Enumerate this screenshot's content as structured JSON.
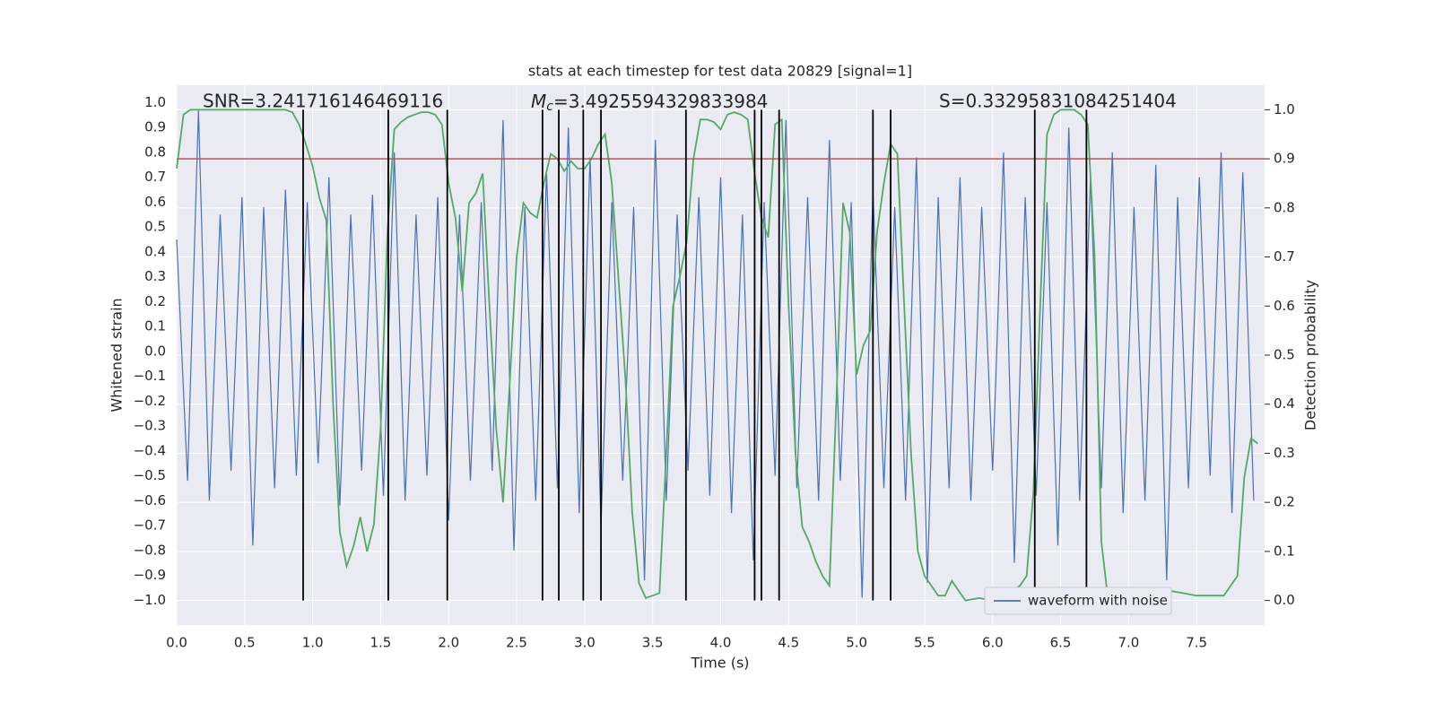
{
  "chart_data": {
    "type": "line",
    "title": "stats at each timestep for test data 20829 [signal=1]",
    "xlabel": "Time (s)",
    "ylabel": "Whitened strain",
    "y2label": "Detection probability",
    "annotations": [
      "SNR=3.241716146469116",
      "Mc=3.4925594329833984",
      "S=0.33295831084251404"
    ],
    "xlim": [
      0,
      8
    ],
    "ylim": [
      -1.1,
      1.07
    ],
    "y2lim": [
      -0.05,
      1.05
    ],
    "xticks": [
      {
        "value": 0,
        "label": "0.0"
      },
      0.5,
      {
        "value": 1,
        "label": "1.0"
      },
      1.5,
      {
        "value": 2,
        "label": "2.0"
      },
      2.5,
      {
        "value": 3,
        "label": "3.0"
      },
      3.5,
      {
        "value": 4,
        "label": "4.0"
      },
      4.5,
      {
        "value": 5,
        "label": "5.0"
      },
      5.5,
      {
        "value": 6,
        "label": "6.0"
      },
      6.5,
      {
        "value": 7,
        "label": "7.0"
      },
      7.5
    ],
    "yticks": [
      {
        "value": 1,
        "label": "1.0"
      },
      0.9,
      0.8,
      0.7,
      0.6,
      0.5,
      0.4,
      0.3,
      0.2,
      0.1,
      {
        "value": 0,
        "label": "0.0"
      },
      {
        "value": -0.1,
        "label": "−0.1"
      },
      {
        "value": -0.2,
        "label": "−0.2"
      },
      {
        "value": -0.3,
        "label": "−0.3"
      },
      {
        "value": -0.4,
        "label": "−0.4"
      },
      {
        "value": -0.5,
        "label": "−0.5"
      },
      {
        "value": -0.6,
        "label": "−0.6"
      },
      {
        "value": -0.7,
        "label": "−0.7"
      },
      {
        "value": -0.8,
        "label": "−0.8"
      },
      {
        "value": -0.9,
        "label": "−0.9"
      },
      {
        "value": -1,
        "label": "−1.0"
      }
    ],
    "y2ticks": [
      {
        "value": 1,
        "label": "1.0"
      },
      0.9,
      0.8,
      0.7,
      0.6,
      0.5,
      0.4,
      0.3,
      0.2,
      0.1,
      {
        "value": 0,
        "label": "0.0"
      }
    ],
    "grid": true,
    "legend": "lower right",
    "series": [
      {
        "name": "waveform with noise",
        "color": "#4c72b0",
        "axis": "y",
        "x": [
          0,
          0.08,
          0.16,
          0.24,
          0.32,
          0.4,
          0.48,
          0.56,
          0.64,
          0.72,
          0.8,
          0.88,
          0.96,
          1.04,
          1.12,
          1.2,
          1.28,
          1.36,
          1.44,
          1.52,
          1.6,
          1.68,
          1.76,
          1.84,
          1.92,
          2,
          2.08,
          2.16,
          2.24,
          2.32,
          2.4,
          2.48,
          2.56,
          2.64,
          2.72,
          2.8,
          2.88,
          2.96,
          3.04,
          3.12,
          3.2,
          3.28,
          3.36,
          3.44,
          3.52,
          3.6,
          3.68,
          3.76,
          3.84,
          3.92,
          4,
          4.08,
          4.16,
          4.24,
          4.32,
          4.4,
          4.48,
          4.56,
          4.64,
          4.72,
          4.8,
          4.88,
          4.96,
          5.04,
          5.12,
          5.2,
          5.28,
          5.36,
          5.44,
          5.52,
          5.6,
          5.68,
          5.76,
          5.84,
          5.92,
          6,
          6.08,
          6.16,
          6.24,
          6.32,
          6.4,
          6.48,
          6.56,
          6.64,
          6.72,
          6.8,
          6.88,
          6.96,
          7.04,
          7.12,
          7.2,
          7.28,
          7.36,
          7.44,
          7.52,
          7.6,
          7.68,
          7.76,
          7.84,
          7.92
        ],
        "values": [
          0.45,
          -0.52,
          0.97,
          -0.6,
          0.55,
          -0.48,
          0.62,
          -0.78,
          0.58,
          -0.55,
          0.65,
          -0.5,
          0.6,
          -0.45,
          0.7,
          -0.62,
          0.55,
          -0.48,
          0.63,
          -0.58,
          0.8,
          -0.6,
          0.55,
          -0.5,
          0.62,
          -0.68,
          0.55,
          -0.52,
          0.6,
          -0.48,
          0.93,
          -0.8,
          0.58,
          -0.6,
          0.72,
          -0.55,
          0.9,
          -0.65,
          0.78,
          -0.7,
          0.6,
          -0.52,
          0.58,
          -0.92,
          0.85,
          -0.6,
          0.55,
          -0.48,
          0.62,
          -0.58,
          0.7,
          -0.65,
          0.55,
          -0.84,
          0.6,
          -0.5,
          0.93,
          -0.55,
          0.62,
          -0.6,
          0.85,
          -0.52,
          0.6,
          -0.99,
          0.65,
          -0.55,
          0.58,
          -0.6,
          0.78,
          -0.93,
          0.62,
          -0.55,
          0.7,
          -0.6,
          0.58,
          -0.48,
          0.8,
          -0.85,
          0.62,
          -0.58,
          0.6,
          -0.78,
          0.9,
          -0.6,
          0.7,
          -0.55,
          0.8,
          -0.65,
          0.58,
          -0.6,
          0.75,
          -0.92,
          0.62,
          -0.55,
          0.7,
          -0.5,
          0.8,
          -0.65,
          0.72,
          -0.6
        ]
      },
      {
        "color": "#55a868",
        "axis": "y2",
        "x": [
          0,
          0.05,
          0.1,
          0.2,
          0.3,
          0.4,
          0.5,
          0.6,
          0.7,
          0.8,
          0.85,
          0.9,
          0.95,
          1,
          1.05,
          1.1,
          1.15,
          1.2,
          1.25,
          1.3,
          1.35,
          1.4,
          1.45,
          1.5,
          1.55,
          1.6,
          1.65,
          1.7,
          1.75,
          1.8,
          1.85,
          1.9,
          1.95,
          2,
          2.05,
          2.1,
          2.15,
          2.2,
          2.25,
          2.3,
          2.35,
          2.4,
          2.45,
          2.5,
          2.55,
          2.6,
          2.65,
          2.7,
          2.75,
          2.8,
          2.85,
          2.9,
          2.95,
          3,
          3.05,
          3.1,
          3.15,
          3.2,
          3.25,
          3.3,
          3.35,
          3.4,
          3.45,
          3.5,
          3.55,
          3.6,
          3.65,
          3.7,
          3.75,
          3.8,
          3.85,
          3.9,
          3.95,
          4,
          4.05,
          4.1,
          4.15,
          4.2,
          4.25,
          4.3,
          4.35,
          4.4,
          4.45,
          4.5,
          4.55,
          4.6,
          4.65,
          4.7,
          4.75,
          4.8,
          4.85,
          4.9,
          4.95,
          5,
          5.05,
          5.1,
          5.15,
          5.2,
          5.25,
          5.3,
          5.35,
          5.4,
          5.45,
          5.5,
          5.55,
          5.6,
          5.65,
          5.7,
          5.8,
          5.9,
          6,
          6.1,
          6.15,
          6.2,
          6.25,
          6.3,
          6.35,
          6.4,
          6.45,
          6.5,
          6.55,
          6.6,
          6.65,
          6.7,
          6.75,
          6.8,
          6.85,
          7,
          7.2,
          7.3,
          7.4,
          7.5,
          7.6,
          7.7,
          7.8,
          7.85,
          7.9,
          7.95
        ],
        "values": [
          0.88,
          0.99,
          1,
          1,
          1,
          1,
          1,
          1,
          1,
          1,
          0.995,
          0.97,
          0.93,
          0.885,
          0.82,
          0.775,
          0.4,
          0.14,
          0.07,
          0.11,
          0.17,
          0.1,
          0.155,
          0.35,
          0.75,
          0.96,
          0.975,
          0.985,
          0.99,
          0.995,
          0.995,
          0.99,
          0.97,
          0.85,
          0.78,
          0.63,
          0.81,
          0.83,
          0.87,
          0.6,
          0.35,
          0.2,
          0.45,
          0.7,
          0.81,
          0.79,
          0.78,
          0.85,
          0.91,
          0.9,
          0.875,
          0.895,
          0.88,
          0.88,
          0.9,
          0.93,
          0.95,
          0.85,
          0.65,
          0.45,
          0.18,
          0.035,
          0.005,
          0.01,
          0.015,
          0.3,
          0.6,
          0.66,
          0.73,
          0.9,
          0.98,
          0.98,
          0.975,
          0.96,
          0.99,
          0.995,
          0.99,
          0.98,
          0.87,
          0.78,
          0.74,
          0.97,
          0.98,
          0.6,
          0.3,
          0.15,
          0.12,
          0.08,
          0.05,
          0.03,
          0.4,
          0.81,
          0.75,
          0.46,
          0.52,
          0.55,
          0.75,
          0.85,
          0.93,
          0.91,
          0.6,
          0.3,
          0.1,
          0.05,
          0.03,
          0.01,
          0.01,
          0.04,
          0,
          0.005,
          0,
          0,
          0.02,
          0.03,
          0.05,
          0.22,
          0.6,
          0.95,
          0.99,
          1,
          1,
          1,
          0.99,
          0.97,
          0.7,
          0.12,
          0,
          0,
          0,
          0.02,
          0.015,
          0.01,
          0.01,
          0.01,
          0.05,
          0.25,
          0.33,
          0.32
        ]
      }
    ],
    "vlines": {
      "color": "#000000",
      "x": [
        0.93,
        1.556,
        1.99,
        2.69,
        2.81,
        2.99,
        3.12,
        3.745,
        4.25,
        4.3,
        4.43,
        5.12,
        5.25,
        6.31,
        6.69
      ]
    },
    "hline": {
      "value": 0.9,
      "axis": "y2",
      "color": "#c44e52"
    }
  }
}
